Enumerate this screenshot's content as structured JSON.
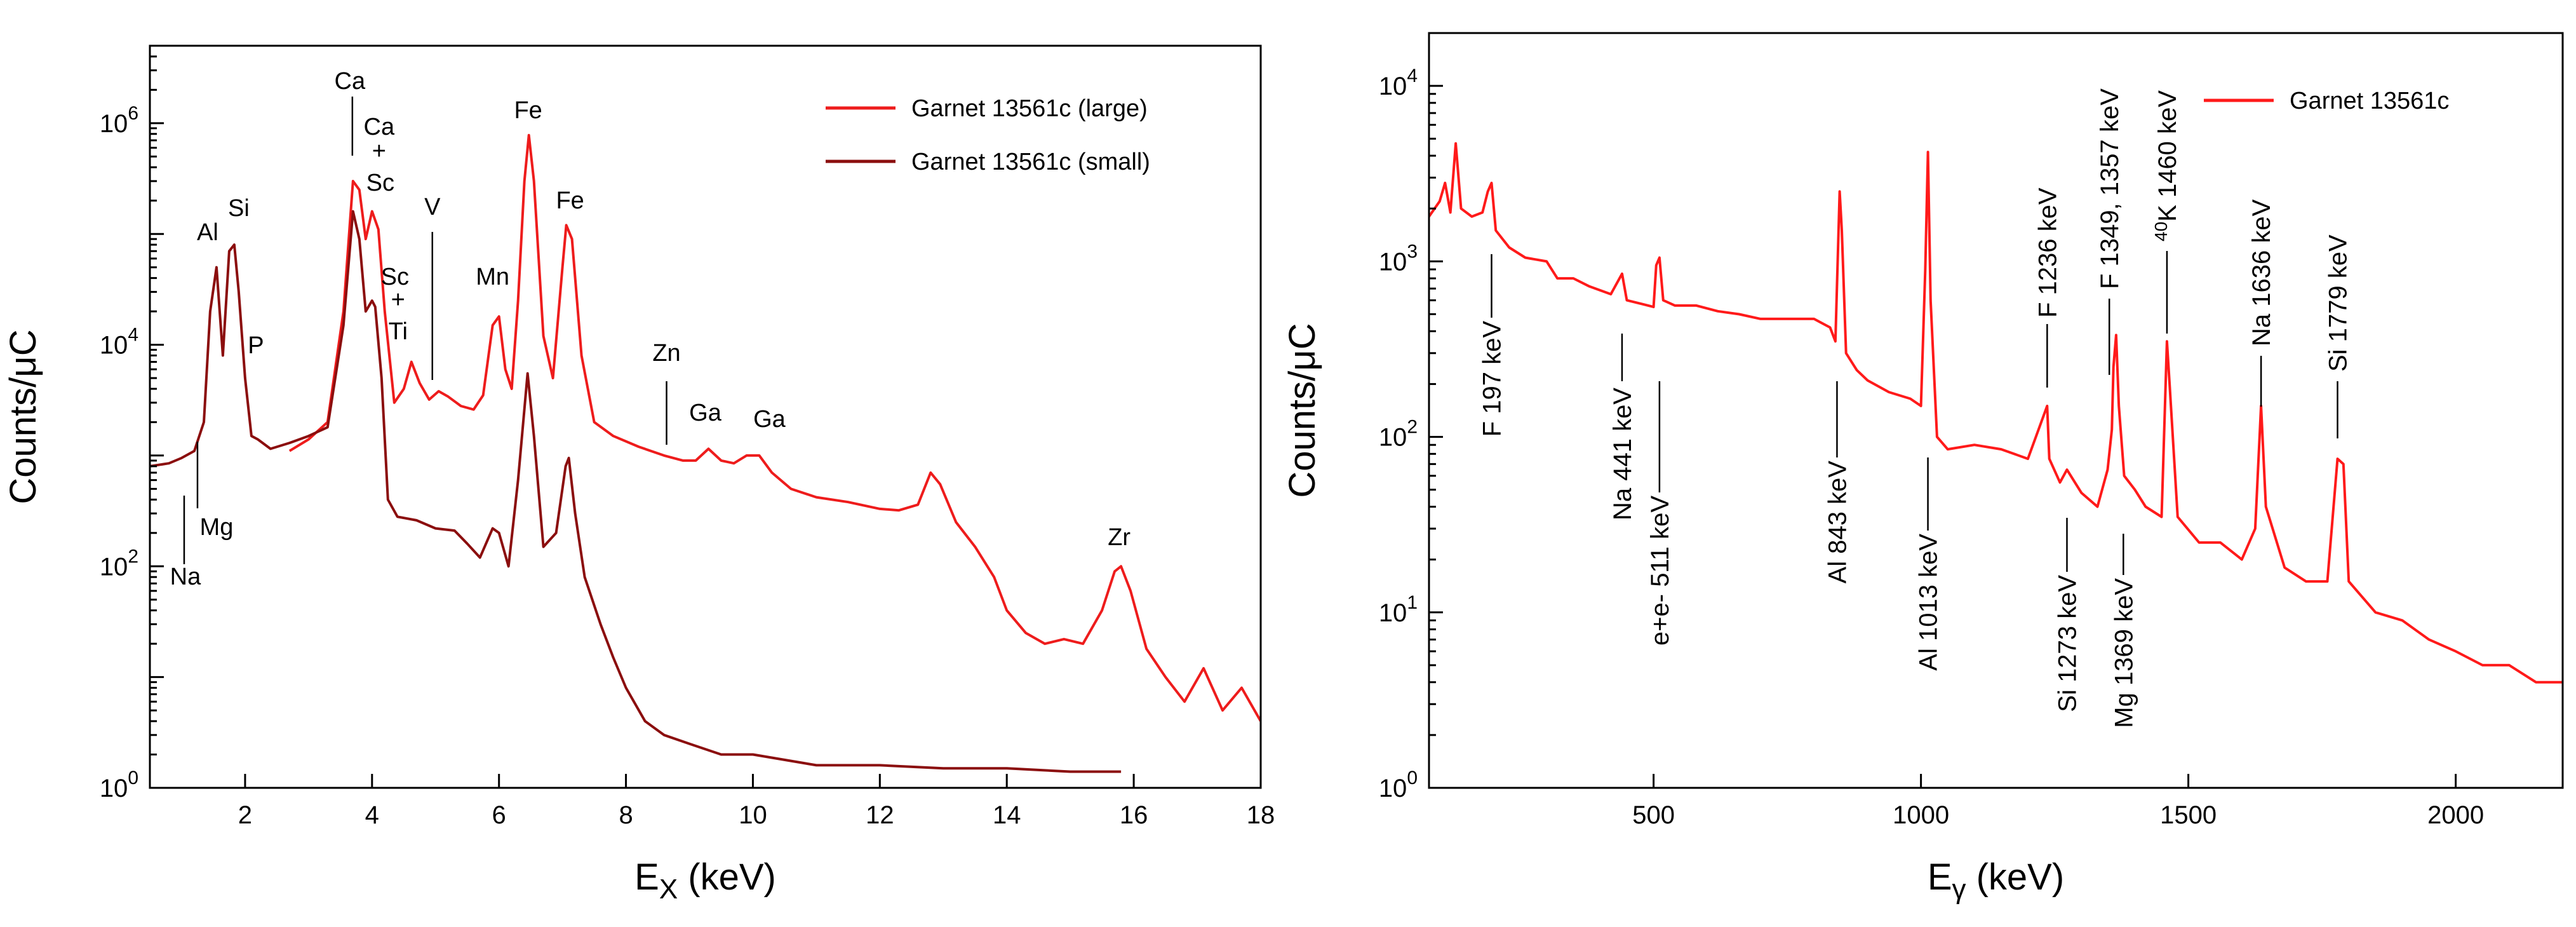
{
  "chart_data": [
    {
      "type": "line",
      "panel": "left",
      "xlabel_main": "E",
      "xlabel_sub": "X",
      "xlabel_unit": " (keV)",
      "ylabel": "Counts/μC",
      "yscale": "log",
      "xlim": [
        0.5,
        18
      ],
      "ylim": [
        1,
        5000000
      ],
      "x_ticks": [
        2,
        4,
        6,
        8,
        10,
        12,
        14,
        16,
        18
      ],
      "y_ticks": [
        {
          "value": 1,
          "mantissa": "10",
          "exp": "0"
        },
        {
          "value": 100,
          "mantissa": "10",
          "exp": "2"
        },
        {
          "value": 10000,
          "mantissa": "10",
          "exp": "4"
        },
        {
          "value": 1000000,
          "mantissa": "10",
          "exp": "6"
        }
      ],
      "legend": {
        "position": "top-right",
        "entries": [
          "Garnet 13561c (large)",
          "Garnet 13561c (small)"
        ]
      },
      "series": [
        {
          "name": "Garnet 13561c (large)",
          "color": "#ee1c1c",
          "points": [
            [
              2.7,
              1100
            ],
            [
              3.0,
              1400
            ],
            [
              3.3,
              2000
            ],
            [
              3.55,
              20000
            ],
            [
              3.7,
              300000
            ],
            [
              3.8,
              250000
            ],
            [
              3.9,
              90000
            ],
            [
              4.0,
              160000
            ],
            [
              4.1,
              110000
            ],
            [
              4.2,
              20000
            ],
            [
              4.35,
              3000
            ],
            [
              4.5,
              4000
            ],
            [
              4.62,
              7000
            ],
            [
              4.75,
              4500
            ],
            [
              4.9,
              3200
            ],
            [
              5.05,
              3800
            ],
            [
              5.2,
              3400
            ],
            [
              5.4,
              2800
            ],
            [
              5.6,
              2600
            ],
            [
              5.75,
              3500
            ],
            [
              5.9,
              15000
            ],
            [
              6.0,
              18000
            ],
            [
              6.1,
              6000
            ],
            [
              6.2,
              4000
            ],
            [
              6.3,
              25000
            ],
            [
              6.4,
              300000
            ],
            [
              6.47,
              780000
            ],
            [
              6.55,
              300000
            ],
            [
              6.7,
              12000
            ],
            [
              6.85,
              5000
            ],
            [
              7.0,
              50000
            ],
            [
              7.06,
              120000
            ],
            [
              7.15,
              90000
            ],
            [
              7.3,
              8000
            ],
            [
              7.5,
              2000
            ],
            [
              7.8,
              1500
            ],
            [
              8.2,
              1200
            ],
            [
              8.6,
              1000
            ],
            [
              8.9,
              900
            ],
            [
              9.1,
              900
            ],
            [
              9.3,
              1150
            ],
            [
              9.5,
              900
            ],
            [
              9.7,
              850
            ],
            [
              9.9,
              1000
            ],
            [
              10.1,
              1000
            ],
            [
              10.3,
              700
            ],
            [
              10.6,
              500
            ],
            [
              11.0,
              420
            ],
            [
              11.5,
              380
            ],
            [
              12.0,
              330
            ],
            [
              12.3,
              320
            ],
            [
              12.6,
              360
            ],
            [
              12.8,
              700
            ],
            [
              12.95,
              550
            ],
            [
              13.2,
              250
            ],
            [
              13.5,
              150
            ],
            [
              13.8,
              80
            ],
            [
              14.0,
              40
            ],
            [
              14.3,
              25
            ],
            [
              14.6,
              20
            ],
            [
              14.9,
              22
            ],
            [
              15.2,
              20
            ],
            [
              15.5,
              40
            ],
            [
              15.7,
              90
            ],
            [
              15.8,
              100
            ],
            [
              15.95,
              60
            ],
            [
              16.2,
              18
            ],
            [
              16.5,
              10
            ],
            [
              16.8,
              6
            ],
            [
              17.1,
              12
            ],
            [
              17.4,
              5
            ],
            [
              17.7,
              8
            ],
            [
              18.0,
              4
            ]
          ]
        },
        {
          "name": "Garnet 13561c (small)",
          "color": "#8b0e0e",
          "points": [
            [
              0.5,
              800
            ],
            [
              0.8,
              850
            ],
            [
              1.0,
              950
            ],
            [
              1.2,
              1100
            ],
            [
              1.35,
              2000
            ],
            [
              1.45,
              20000
            ],
            [
              1.55,
              50000
            ],
            [
              1.65,
              8000
            ],
            [
              1.75,
              70000
            ],
            [
              1.83,
              80000
            ],
            [
              1.9,
              30000
            ],
            [
              2.0,
              5000
            ],
            [
              2.1,
              1500
            ],
            [
              2.2,
              1400
            ],
            [
              2.4,
              1150
            ],
            [
              2.7,
              1300
            ],
            [
              3.0,
              1500
            ],
            [
              3.3,
              1800
            ],
            [
              3.55,
              15000
            ],
            [
              3.7,
              160000
            ],
            [
              3.8,
              90000
            ],
            [
              3.9,
              20000
            ],
            [
              4.0,
              25000
            ],
            [
              4.05,
              22000
            ],
            [
              4.15,
              5000
            ],
            [
              4.25,
              400
            ],
            [
              4.4,
              280
            ],
            [
              4.7,
              260
            ],
            [
              5.0,
              220
            ],
            [
              5.3,
              210
            ],
            [
              5.5,
              160
            ],
            [
              5.7,
              120
            ],
            [
              5.9,
              220
            ],
            [
              6.0,
              200
            ],
            [
              6.15,
              100
            ],
            [
              6.3,
              600
            ],
            [
              6.45,
              5500
            ],
            [
              6.55,
              1500
            ],
            [
              6.7,
              150
            ],
            [
              6.9,
              200
            ],
            [
              7.05,
              800
            ],
            [
              7.1,
              950
            ],
            [
              7.2,
              300
            ],
            [
              7.35,
              80
            ],
            [
              7.6,
              30
            ],
            [
              7.8,
              15
            ],
            [
              8.0,
              8
            ],
            [
              8.3,
              4
            ],
            [
              8.6,
              3
            ],
            [
              9.0,
              2.5
            ],
            [
              9.5,
              2
            ],
            [
              10.0,
              2
            ],
            [
              11.0,
              1.6
            ],
            [
              12.0,
              1.6
            ],
            [
              13.0,
              1.5
            ],
            [
              14.0,
              1.5
            ],
            [
              15.0,
              1.4
            ],
            [
              15.8,
              1.4
            ]
          ]
        }
      ],
      "annotations": [
        {
          "text": "Na",
          "x": 1.04
        },
        {
          "text": "Mg",
          "x": 1.25
        },
        {
          "text": "Al",
          "x": 1.49
        },
        {
          "text": "Si",
          "x": 1.74
        },
        {
          "text": "P",
          "x": 2.01
        },
        {
          "text": "Ca",
          "x": 3.69
        },
        {
          "text": "Ca",
          "x": 4.01
        },
        {
          "text": "+",
          "x": 4.01
        },
        {
          "text": "Sc",
          "x": 4.09
        },
        {
          "text": "Sc",
          "x": 4.46
        },
        {
          "text": "+",
          "x": 4.51
        },
        {
          "text": "Ti",
          "x": 4.51
        },
        {
          "text": "V",
          "x": 4.95
        },
        {
          "text": "Mn",
          "x": 5.9
        },
        {
          "text": "Fe",
          "x": 6.4
        },
        {
          "text": "Fe",
          "x": 7.06
        },
        {
          "text": "Zn",
          "x": 8.64
        },
        {
          "text": "Ga",
          "x": 9.25
        },
        {
          "text": "Ga",
          "x": 10.26
        },
        {
          "text": "Zr",
          "x": 15.77
        }
      ]
    },
    {
      "type": "line",
      "panel": "right",
      "xlabel_main": "E",
      "xlabel_sub": "γ",
      "xlabel_unit": " (keV)",
      "ylabel": "Counts/μC",
      "yscale": "log",
      "xlim": [
        80,
        2200
      ],
      "ylim": [
        1,
        20000
      ],
      "x_ticks": [
        500,
        1000,
        1500,
        2000
      ],
      "y_ticks": [
        {
          "value": 1,
          "mantissa": "10",
          "exp": "0"
        },
        {
          "value": 10,
          "mantissa": "10",
          "exp": "1"
        },
        {
          "value": 100,
          "mantissa": "10",
          "exp": "2"
        },
        {
          "value": 1000,
          "mantissa": "10",
          "exp": "3"
        },
        {
          "value": 10000,
          "mantissa": "10",
          "exp": "4"
        }
      ],
      "legend": {
        "position": "top-right",
        "entries": [
          "Garnet 13561c"
        ]
      },
      "series": [
        {
          "name": "Garnet 13561c",
          "color": "#ff1a1a",
          "points": [
            [
              80,
              1800
            ],
            [
              100,
              2200
            ],
            [
              110,
              2800
            ],
            [
              120,
              1900
            ],
            [
              130,
              4700
            ],
            [
              140,
              2000
            ],
            [
              160,
              1800
            ],
            [
              180,
              1900
            ],
            [
              190,
              2500
            ],
            [
              197,
              2800
            ],
            [
              205,
              1500
            ],
            [
              230,
              1200
            ],
            [
              260,
              1050
            ],
            [
              300,
              1000
            ],
            [
              320,
              800
            ],
            [
              350,
              800
            ],
            [
              380,
              720
            ],
            [
              420,
              650
            ],
            [
              441,
              850
            ],
            [
              450,
              600
            ],
            [
              480,
              570
            ],
            [
              500,
              550
            ],
            [
              505,
              950
            ],
            [
              511,
              1050
            ],
            [
              518,
              600
            ],
            [
              540,
              560
            ],
            [
              580,
              560
            ],
            [
              620,
              520
            ],
            [
              660,
              500
            ],
            [
              700,
              470
            ],
            [
              750,
              470
            ],
            [
              800,
              470
            ],
            [
              830,
              420
            ],
            [
              840,
              350
            ],
            [
              845,
              1200
            ],
            [
              848,
              2500
            ],
            [
              852,
              1500
            ],
            [
              860,
              300
            ],
            [
              880,
              240
            ],
            [
              900,
              210
            ],
            [
              940,
              180
            ],
            [
              980,
              165
            ],
            [
              1000,
              150
            ],
            [
              1008,
              900
            ],
            [
              1013,
              4200
            ],
            [
              1018,
              600
            ],
            [
              1030,
              100
            ],
            [
              1050,
              85
            ],
            [
              1100,
              90
            ],
            [
              1150,
              85
            ],
            [
              1200,
              75
            ],
            [
              1236,
              150
            ],
            [
              1240,
              75
            ],
            [
              1260,
              55
            ],
            [
              1273,
              65
            ],
            [
              1300,
              48
            ],
            [
              1330,
              40
            ],
            [
              1349,
              65
            ],
            [
              1357,
              110
            ],
            [
              1360,
              250
            ],
            [
              1365,
              380
            ],
            [
              1370,
              150
            ],
            [
              1380,
              60
            ],
            [
              1400,
              50
            ],
            [
              1420,
              40
            ],
            [
              1450,
              35
            ],
            [
              1460,
              350
            ],
            [
              1465,
              200
            ],
            [
              1480,
              35
            ],
            [
              1520,
              25
            ],
            [
              1560,
              25
            ],
            [
              1600,
              20
            ],
            [
              1625,
              30
            ],
            [
              1636,
              150
            ],
            [
              1645,
              40
            ],
            [
              1680,
              18
            ],
            [
              1720,
              15
            ],
            [
              1760,
              15
            ],
            [
              1779,
              75
            ],
            [
              1790,
              70
            ],
            [
              1800,
              15
            ],
            [
              1850,
              10
            ],
            [
              1900,
              9
            ],
            [
              1950,
              7
            ],
            [
              2000,
              6
            ],
            [
              2050,
              5
            ],
            [
              2100,
              5
            ],
            [
              2150,
              4
            ],
            [
              2200,
              4
            ]
          ]
        }
      ],
      "annotations": [
        {
          "text": "F 197 keV",
          "x": 197
        },
        {
          "text": "Na 441 keV",
          "x": 441
        },
        {
          "text": "e+e- 511 keV",
          "x": 511
        },
        {
          "text": "Al 843 keV",
          "x": 843
        },
        {
          "text": "Al 1013 keV",
          "x": 1013
        },
        {
          "text": "F 1236 keV",
          "x": 1236
        },
        {
          "text": "Si 1273 keV",
          "x": 1273
        },
        {
          "text": "F 1349, 1357 keV",
          "x": 1357
        },
        {
          "text": "Mg 1369 keV",
          "x": 1369
        },
        {
          "text": "K 1460 keV",
          "sup": "40",
          "x": 1460
        },
        {
          "text": "Na 1636 keV",
          "x": 1636
        },
        {
          "text": "Si 1779 keV",
          "x": 1779
        }
      ]
    }
  ]
}
